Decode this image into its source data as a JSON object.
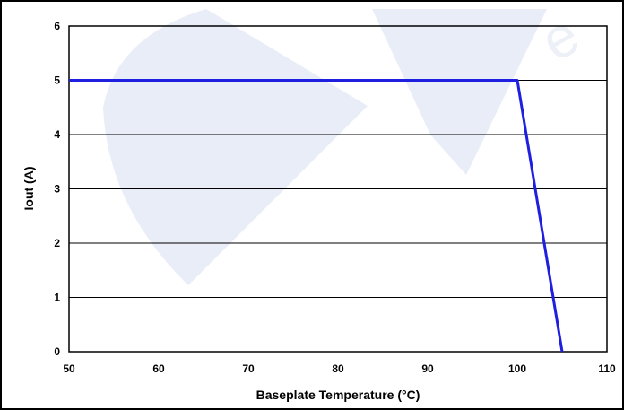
{
  "chart_data": {
    "type": "line",
    "xlabel": "Baseplate Temperature (°C)",
    "ylabel": "Iout (A)",
    "xlim": [
      50,
      110
    ],
    "ylim": [
      0,
      6
    ],
    "xticks": [
      "50",
      "60",
      "70",
      "80",
      "90",
      "100",
      "110"
    ],
    "yticks": [
      "0",
      "1",
      "2",
      "3",
      "4",
      "5",
      "6"
    ],
    "grid": "horizontal",
    "series": [
      {
        "x": [
          50,
          100,
          105
        ],
        "y": [
          5,
          5,
          0
        ],
        "color": "#1f1fe0"
      }
    ]
  }
}
